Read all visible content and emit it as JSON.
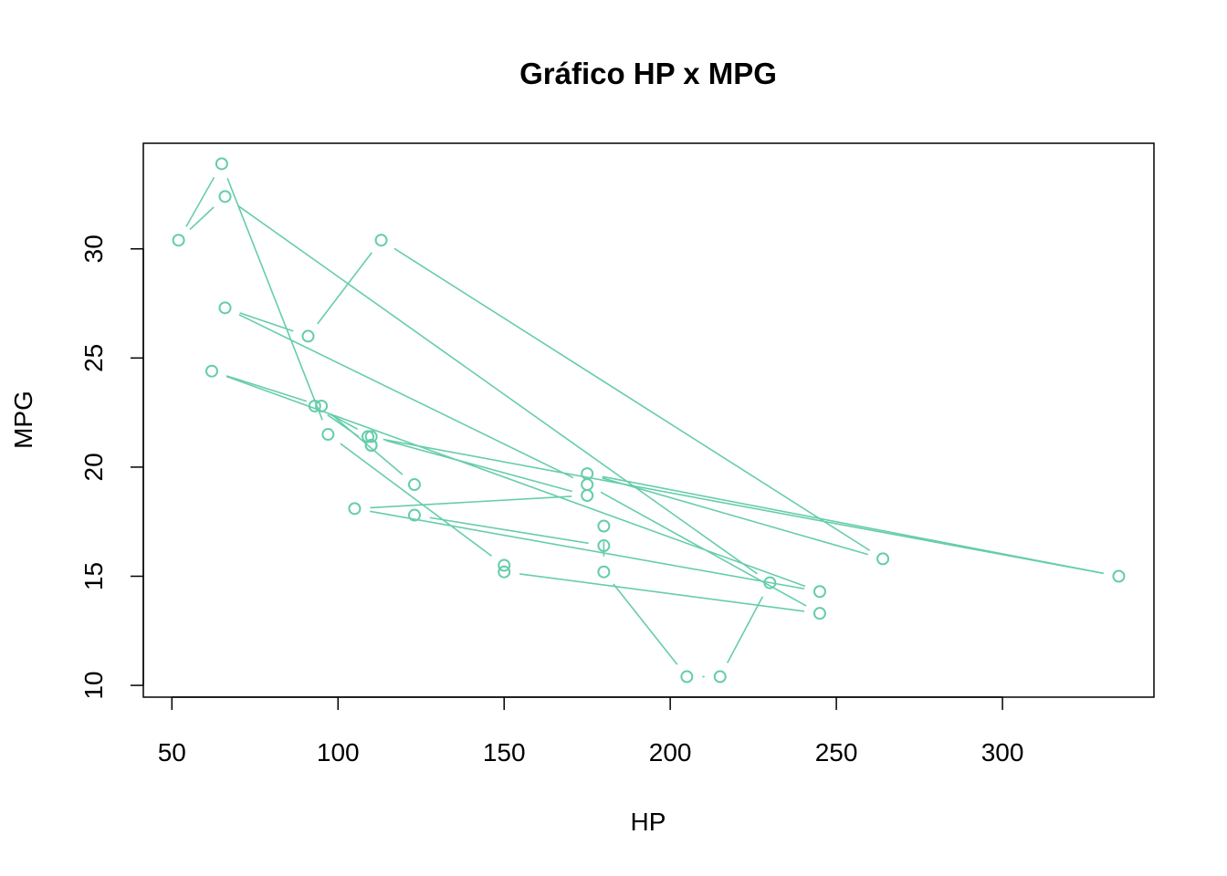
{
  "chart_data": {
    "type": "line",
    "plot_style": "both points and line segments",
    "title": "Gráfico HP x MPG",
    "xlabel": "HP",
    "ylabel": "MPG",
    "x_ticks": [
      50,
      100,
      150,
      200,
      250,
      300
    ],
    "y_ticks": [
      10,
      15,
      20,
      25,
      30
    ],
    "xlim": [
      41.4,
      345.6
    ],
    "ylim": [
      9.46,
      34.84
    ],
    "grid": false,
    "legend": "none",
    "color": "#66CDAA",
    "series": [
      {
        "x": [
          110,
          110,
          93,
          110,
          175,
          105,
          245,
          62,
          95,
          123,
          123,
          180,
          180,
          180,
          205,
          215,
          230,
          66,
          52,
          65,
          97,
          150,
          150,
          245,
          175,
          66,
          91,
          113,
          264,
          175,
          335,
          109
        ],
        "y": [
          21.0,
          21.0,
          22.8,
          21.4,
          18.7,
          18.1,
          14.3,
          24.4,
          22.8,
          19.2,
          17.8,
          16.4,
          17.3,
          15.2,
          10.4,
          10.4,
          14.7,
          32.4,
          30.4,
          33.9,
          21.5,
          15.5,
          15.2,
          13.3,
          19.2,
          27.3,
          26.0,
          30.4,
          15.8,
          19.7,
          15.0,
          21.4
        ]
      }
    ]
  }
}
